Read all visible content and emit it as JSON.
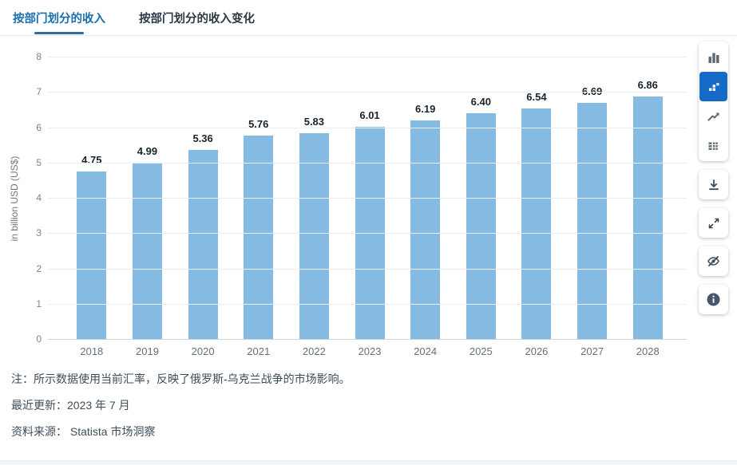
{
  "tabs": [
    {
      "label": "按部门划分的收入",
      "active": true
    },
    {
      "label": "按部门划分的收入变化",
      "active": false
    }
  ],
  "chart_data": {
    "type": "bar",
    "categories": [
      "2018",
      "2019",
      "2020",
      "2021",
      "2022",
      "2023",
      "2024",
      "2025",
      "2026",
      "2027",
      "2028"
    ],
    "values": [
      4.75,
      4.99,
      5.36,
      5.76,
      5.83,
      6.01,
      6.19,
      6.4,
      6.54,
      6.69,
      6.86
    ],
    "data_labels": [
      "4.75",
      "4.99",
      "5.36",
      "5.76",
      "5.83",
      "6.01",
      "6.19",
      "6.40",
      "6.54",
      "6.69",
      "6.86"
    ],
    "title": "",
    "xlabel": "",
    "ylabel": "in billion USD (US$)",
    "ylim": [
      0,
      8
    ],
    "yticks": [
      0,
      1,
      2,
      3,
      4,
      5,
      6,
      7,
      8
    ],
    "grid": true,
    "legend": false,
    "bar_color": "#85bae3"
  },
  "toolbar": {
    "chart_type_buttons": [
      {
        "icon": "bar-chart-icon",
        "selected": false
      },
      {
        "icon": "block-bar-chart-icon",
        "selected": true
      },
      {
        "icon": "line-chart-icon",
        "selected": false
      },
      {
        "icon": "table-icon",
        "selected": false
      }
    ],
    "action_buttons": [
      {
        "icon": "download-icon"
      },
      {
        "icon": "expand-icon"
      },
      {
        "icon": "hide-eye-icon"
      },
      {
        "icon": "info-icon"
      }
    ],
    "selected_color": "#1569c7"
  },
  "notes": {
    "note": "注：所示数据使用当前汇率，反映了俄罗斯-乌克兰战争的市场影响。",
    "last_updated": "最近更新：2023 年 7 月",
    "source": "资料来源： Statista 市场洞察"
  }
}
